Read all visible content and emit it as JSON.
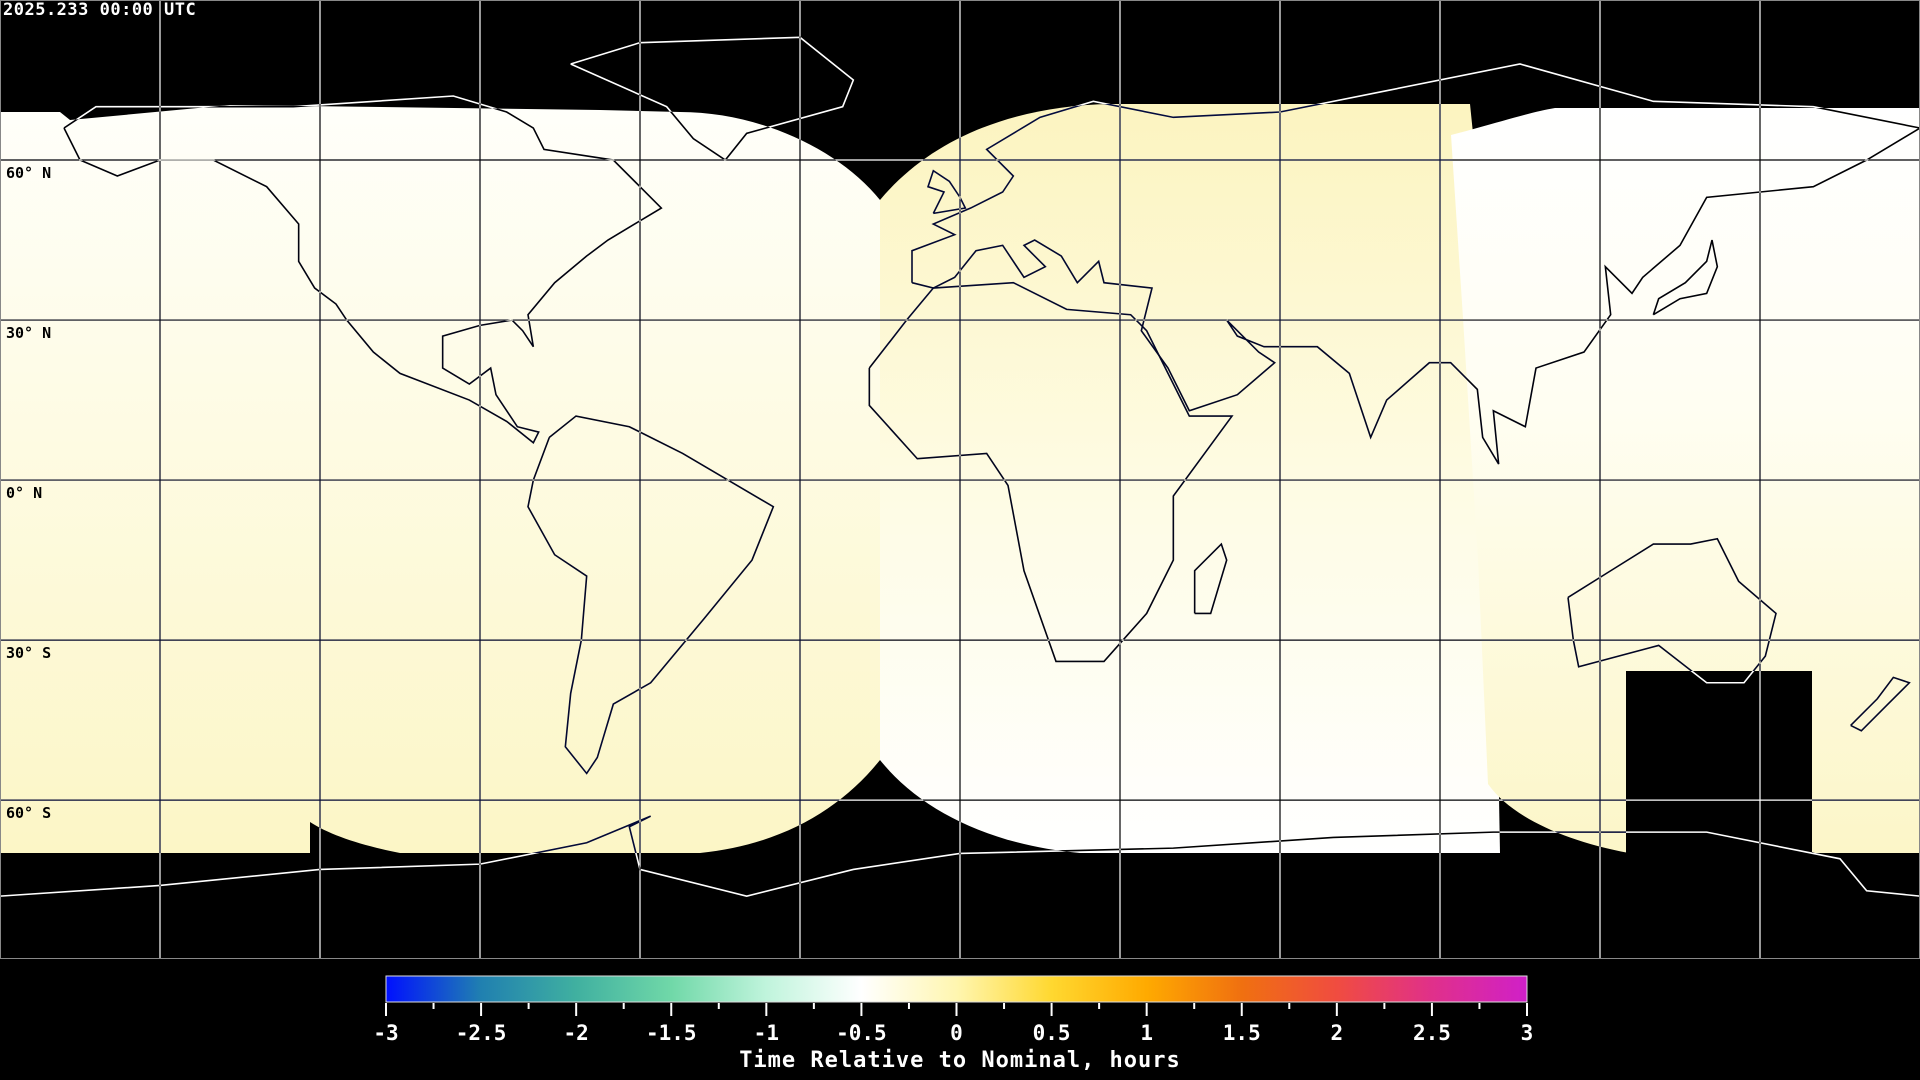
{
  "header": {
    "timestamp": "2025.233 00:00 UTC"
  },
  "map": {
    "projection": "equirectangular",
    "lat_labels": [
      "60° N",
      "30° N",
      "0° N",
      "30° S",
      "60° S"
    ],
    "graticule_spacing_deg": 30,
    "no_data_color": "#000000",
    "coastline_color": "contrasting"
  },
  "colorbar": {
    "title": "Time Relative to Nominal, hours",
    "range": [
      -3,
      3
    ],
    "tick_labels": [
      "-3",
      "-2.5",
      "-2",
      "-1.5",
      "-1",
      "-0.5",
      "0",
      "0.5",
      "1",
      "1.5",
      "2",
      "2.5",
      "3"
    ],
    "colors": [
      "#0010ff",
      "#2080b0",
      "#40b0a0",
      "#70d8a8",
      "#c0f4dc",
      "#ffffff",
      "#fff6b0",
      "#ffd830",
      "#ffaa00",
      "#f07010",
      "#f04c40",
      "#e0308a",
      "#d020c8"
    ]
  }
}
